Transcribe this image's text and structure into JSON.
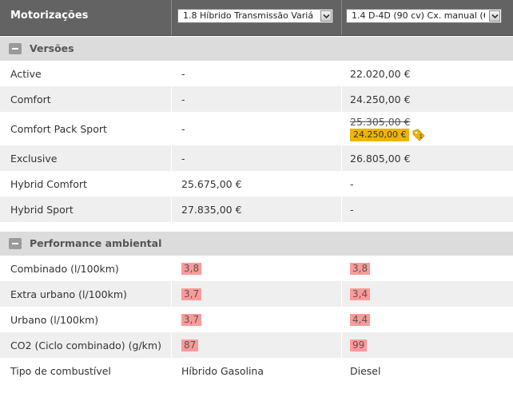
{
  "header": {
    "title": "Motorizações",
    "engine_1": "1.8 Híbrido Transmissão Variá",
    "engine_2": "1.4 D-4D (90 cv) Cx. manual (6"
  },
  "sections": {
    "versions": {
      "title": "Versões"
    },
    "performance": {
      "title": "Performance ambiental"
    }
  },
  "versions": [
    {
      "label": "Active",
      "v1": "-",
      "v2": "22.020,00 €"
    },
    {
      "label": "Comfort",
      "v1": "-",
      "v2": "24.250,00 €"
    },
    {
      "label": "Comfort Pack Sport",
      "v1": "-",
      "v2_old": "25.305,00 €",
      "v2": "24.250,00 €",
      "promo_count": "1"
    },
    {
      "label": "Exclusive",
      "v1": "-",
      "v2": "26.805,00 €"
    },
    {
      "label": "Hybrid Comfort",
      "v1": "25.675,00 €",
      "v2": "-"
    },
    {
      "label": "Hybrid Sport",
      "v1": "27.835,00 €",
      "v2": "-"
    }
  ],
  "performance": [
    {
      "label": "Combinado (l/100km)",
      "v1": "3,8",
      "v2": "3,8"
    },
    {
      "label": "Extra urbano (l/100km)",
      "v1": "3,7",
      "v2": "3,4"
    },
    {
      "label": "Urbano (l/100km)",
      "v1": "3,7",
      "v2": "4,4"
    },
    {
      "label": "CO2 (Ciclo combinado) (g/km)",
      "v1": "87",
      "v2": "99"
    },
    {
      "label": "Tipo de combustível",
      "v1": "Híbrido Gasolina",
      "v2": "Diesel"
    }
  ],
  "colors": {
    "header_bg": "#636363",
    "section_bg": "#dcdcdc",
    "alt_row_bg": "#efefef",
    "badge_bg": "#ff9999",
    "promo_bg": "#f0b400"
  },
  "icons": {
    "section_toggle": "collapse-icon",
    "dropdown": "chevron-down-icon",
    "promo_tag": "tag-icon"
  }
}
